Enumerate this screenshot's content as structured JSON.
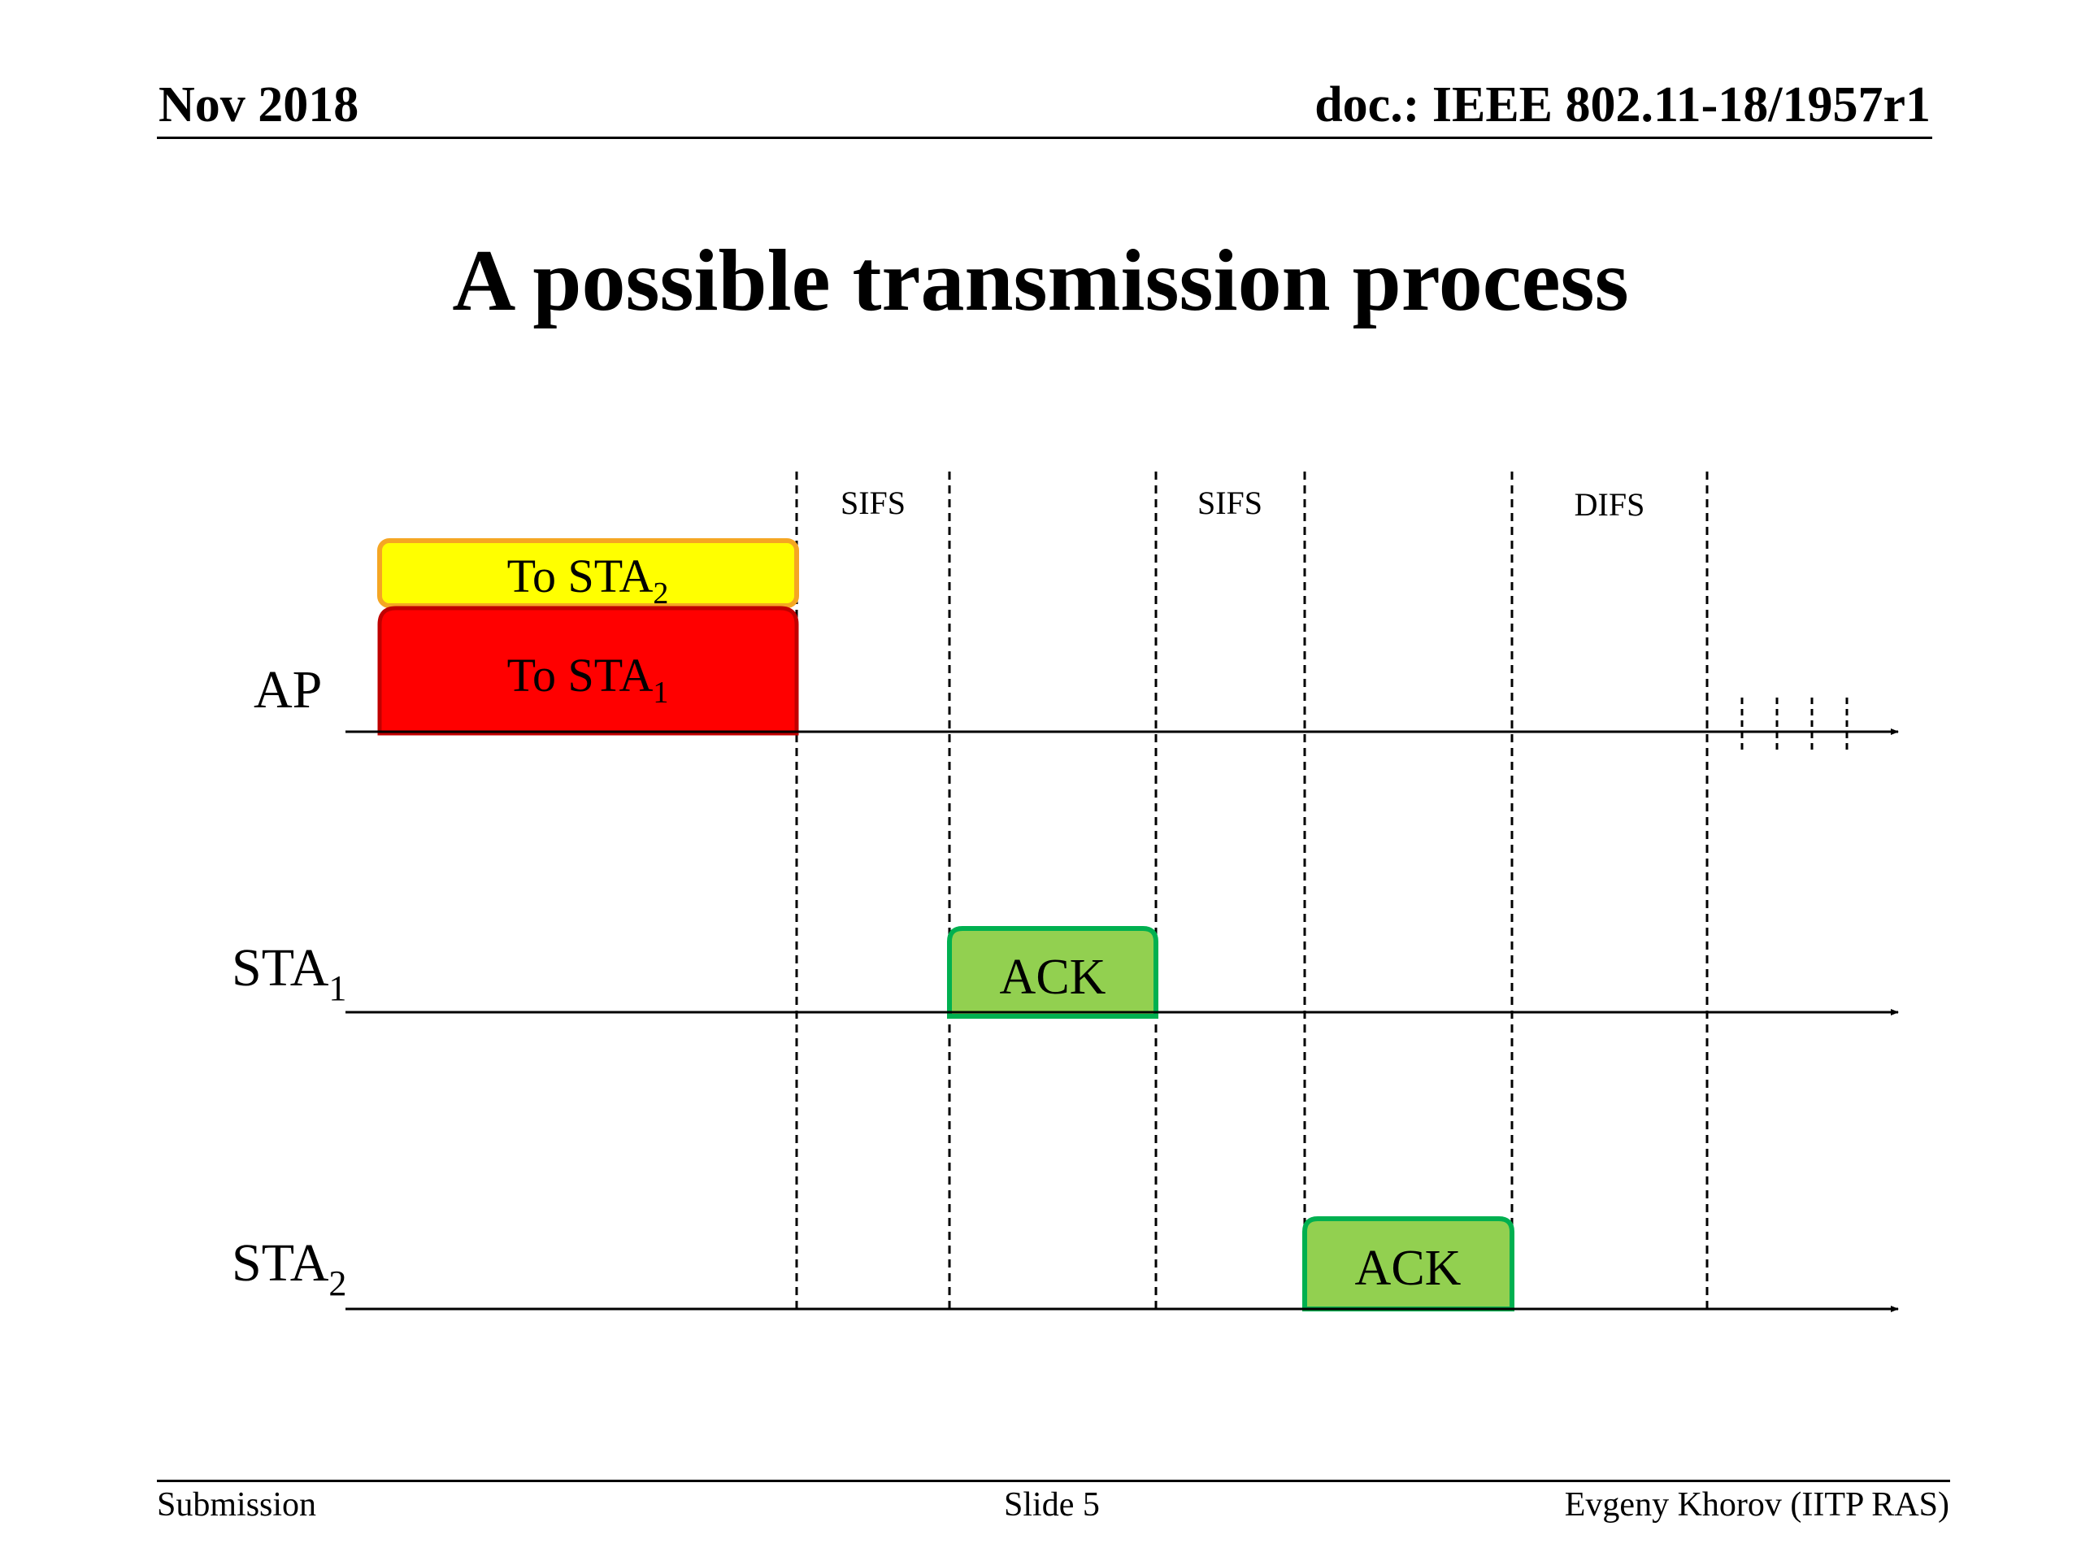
{
  "header": {
    "date": "Nov 2018",
    "doc_id": "doc.: IEEE 802.11-18/1957r1"
  },
  "slide": {
    "title": "A possible transmission process"
  },
  "diagram": {
    "stations": {
      "ap": {
        "name": "AP"
      },
      "sta1": {
        "name": "STA",
        "sub": "1"
      },
      "sta2": {
        "name": "STA",
        "sub": "2"
      }
    },
    "frames": {
      "to_sta2": {
        "label": "To STA",
        "sub": "2",
        "fill": "#ffff00",
        "stroke": "#f5a623"
      },
      "to_sta1": {
        "label": "To STA",
        "sub": "1",
        "fill": "#ff0000",
        "stroke": "#c00000"
      },
      "ack_sta1": {
        "label": "ACK",
        "fill": "#92d050",
        "stroke": "#00b050"
      },
      "ack_sta2": {
        "label": "ACK",
        "fill": "#92d050",
        "stroke": "#00b050"
      }
    },
    "intervals": {
      "sifs_1": "SIFS",
      "sifs_2": "SIFS",
      "difs": "DIFS"
    }
  },
  "footer": {
    "left": "Submission",
    "center": "Slide 5",
    "right": "Evgeny Khorov (IITP RAS)"
  }
}
